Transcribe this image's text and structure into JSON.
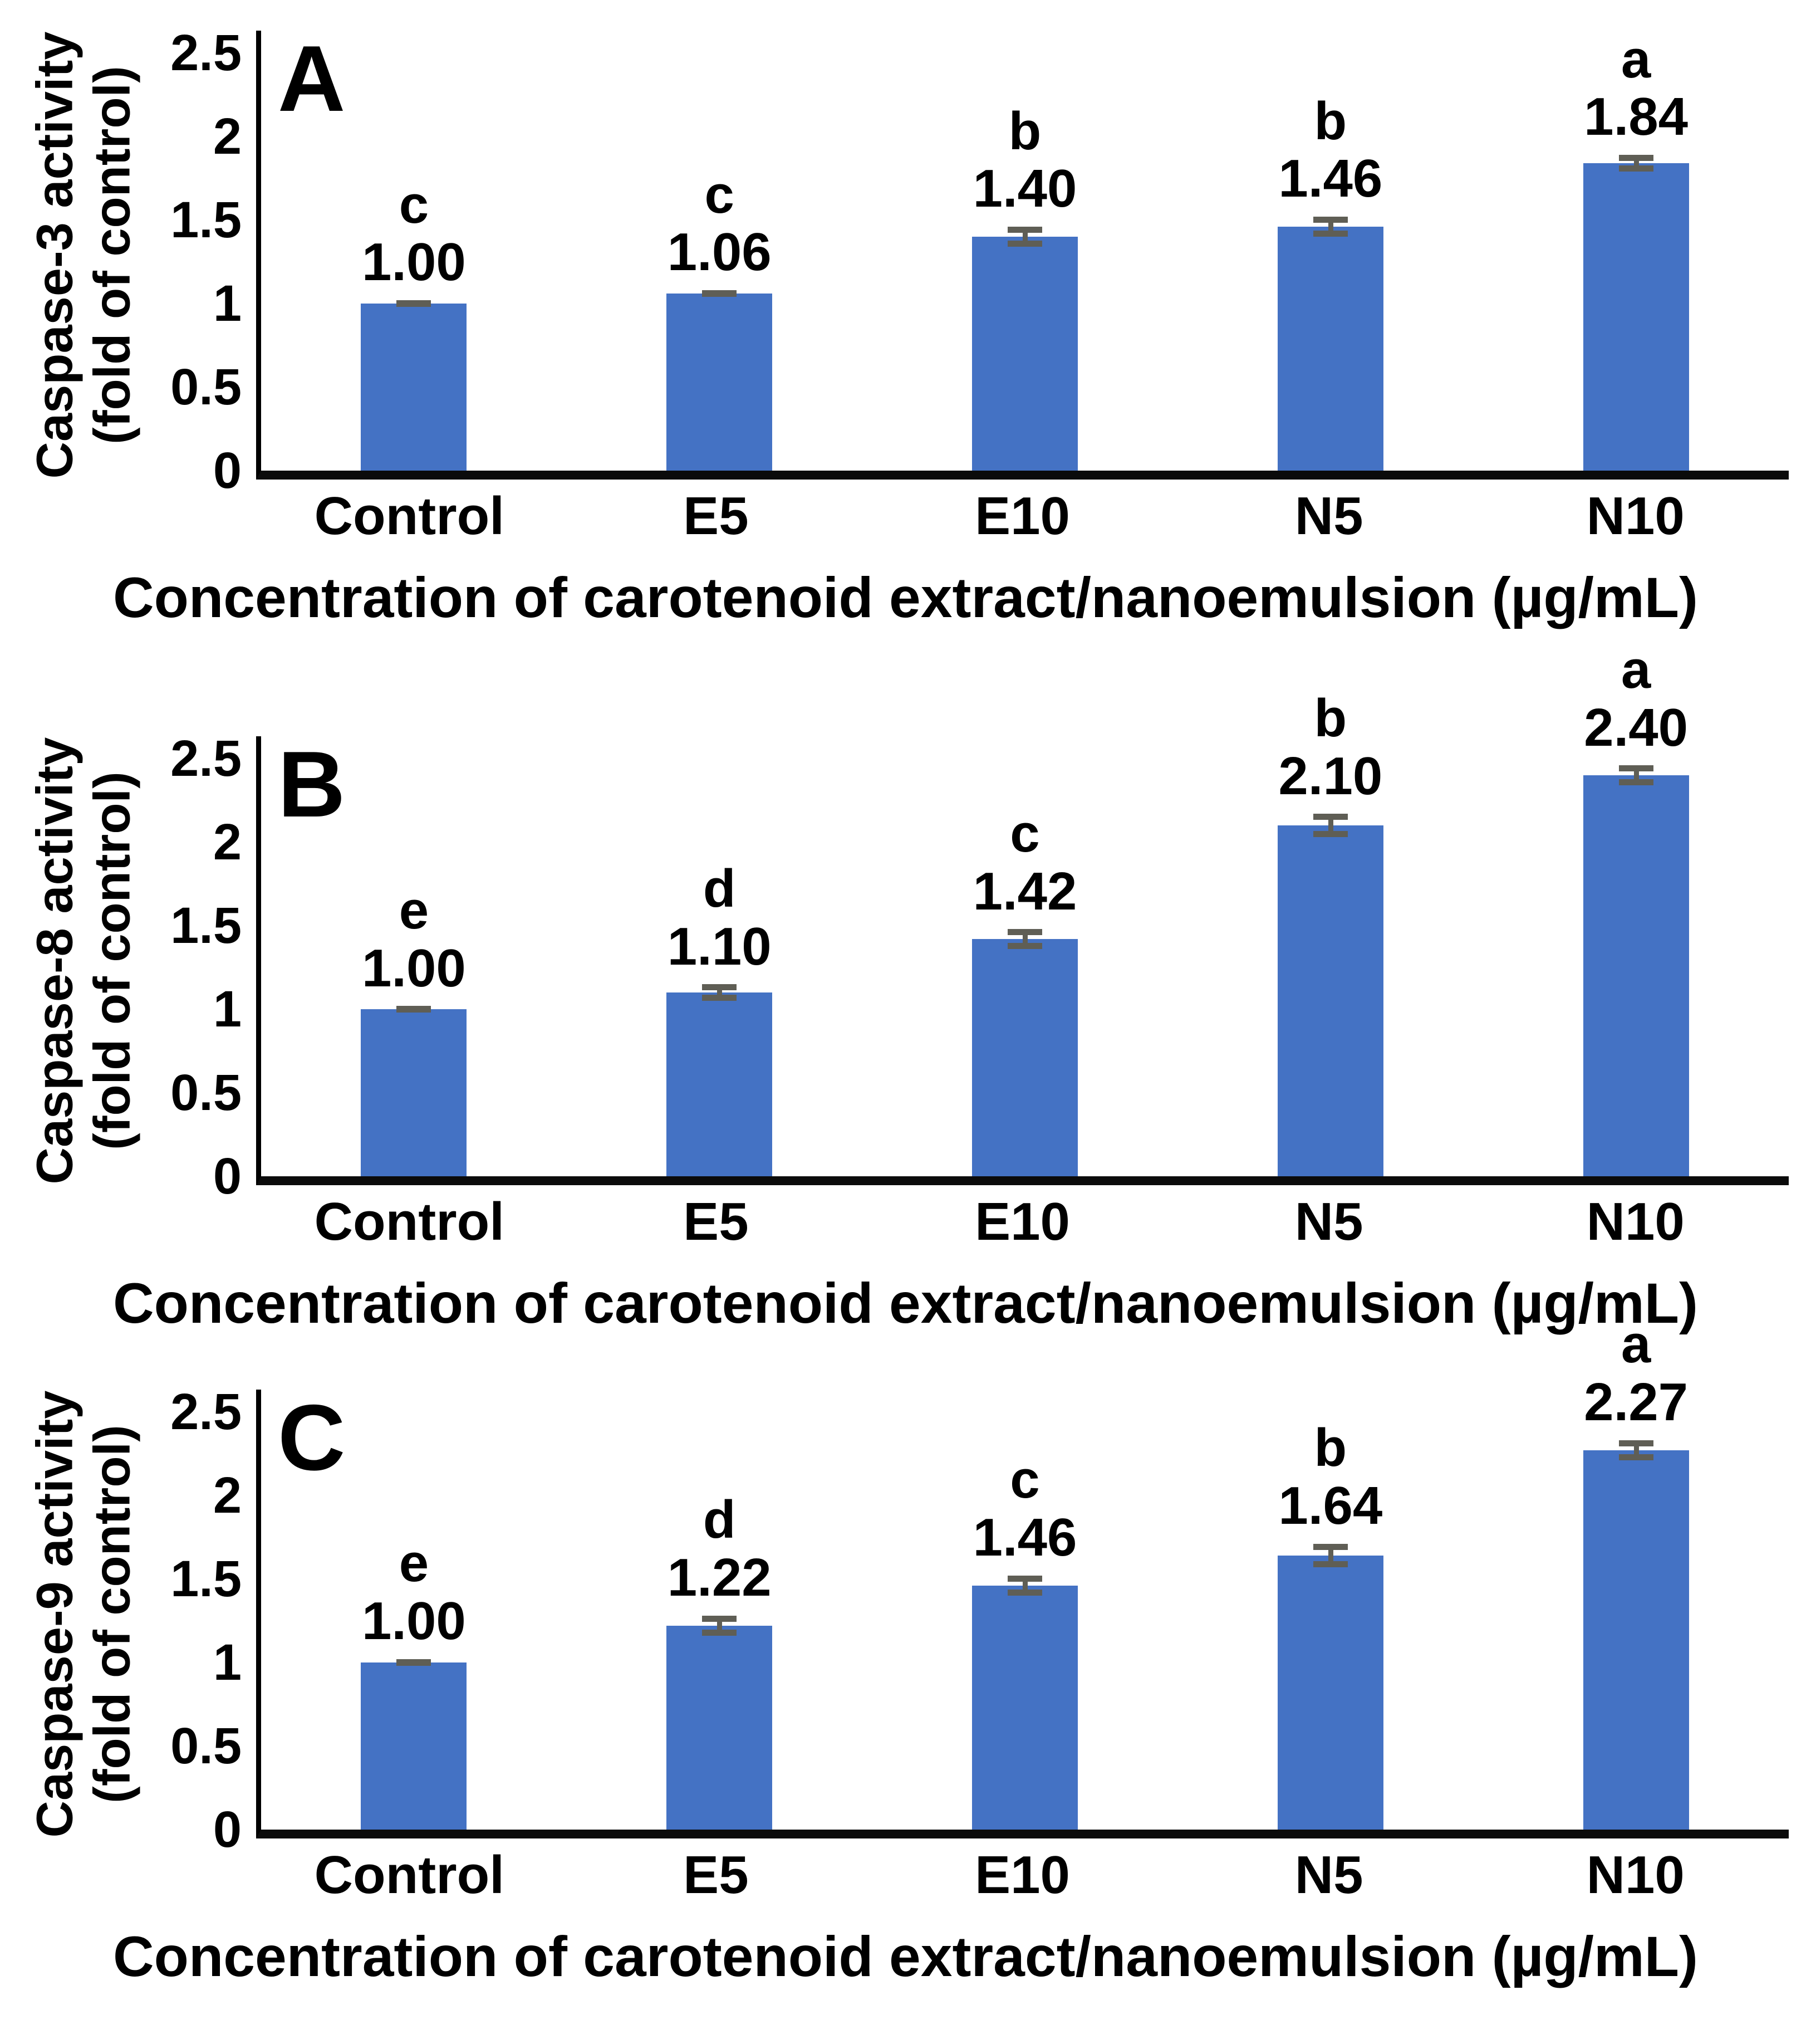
{
  "figure": {
    "xlabel": "Concentration of carotenoid extract/nanoemulsion (µg/mL)",
    "categories": [
      "Control",
      "E5",
      "E10",
      "N5",
      "N10"
    ],
    "ytick_values": [
      0,
      0.5,
      1,
      1.5,
      2,
      2.5
    ],
    "ytick_labels": [
      "0",
      "0.5",
      "1",
      "1.5",
      "2",
      "2.5"
    ],
    "colors": {
      "bar_fill": "#4472C4",
      "error_bar": "#5f5e55",
      "axis": "#000000",
      "text": "#000000"
    }
  },
  "chart_data": [
    {
      "type": "bar",
      "panel_label": "A",
      "ylabel_line1": "Caspase-3 activity",
      "ylabel_line2": "(fold of control)",
      "xlabel": "Concentration of carotenoid extract/nanoemulsion (µg/mL)",
      "categories": [
        "Control",
        "E5",
        "E10",
        "N5",
        "N10"
      ],
      "values": [
        1.0,
        1.06,
        1.4,
        1.46,
        1.84
      ],
      "value_labels": [
        "1.00",
        "1.06",
        "1.40",
        "1.46",
        "1.84"
      ],
      "sig_letters": [
        "c",
        "c",
        "b",
        "b",
        "a"
      ],
      "errors": [
        0.02,
        0.02,
        0.06,
        0.06,
        0.05
      ],
      "ylim": [
        0,
        2.5
      ],
      "grid": false,
      "legend": false
    },
    {
      "type": "bar",
      "panel_label": "B",
      "ylabel_line1": "Caspase-8 activity",
      "ylabel_line2": "(fold of control)",
      "xlabel": "Concentration of carotenoid extract/nanoemulsion (µg/mL)",
      "categories": [
        "Control",
        "E5",
        "E10",
        "N5",
        "N10"
      ],
      "values": [
        1.0,
        1.1,
        1.42,
        2.1,
        2.4
      ],
      "value_labels": [
        "1.00",
        "1.10",
        "1.42",
        "2.10",
        "2.40"
      ],
      "sig_letters": [
        "e",
        "d",
        "c",
        "b",
        "a"
      ],
      "errors": [
        0.02,
        0.05,
        0.06,
        0.07,
        0.06
      ],
      "ylim": [
        0,
        2.5
      ],
      "grid": false,
      "legend": false
    },
    {
      "type": "bar",
      "panel_label": "C",
      "ylabel_line1": "Caspase-9 activity",
      "ylabel_line2": "(fold of control)",
      "xlabel": "Concentration of carotenoid extract/nanoemulsion (µg/mL)",
      "categories": [
        "Control",
        "E5",
        "E10",
        "N5",
        "N10"
      ],
      "values": [
        1.0,
        1.22,
        1.46,
        1.64,
        2.27
      ],
      "value_labels": [
        "1.00",
        "1.22",
        "1.46",
        "1.64",
        "2.27"
      ],
      "sig_letters": [
        "e",
        "d",
        "c",
        "b",
        "a"
      ],
      "errors": [
        0.02,
        0.06,
        0.06,
        0.07,
        0.06
      ],
      "ylim": [
        0,
        2.5
      ],
      "grid": false,
      "legend": false
    }
  ]
}
